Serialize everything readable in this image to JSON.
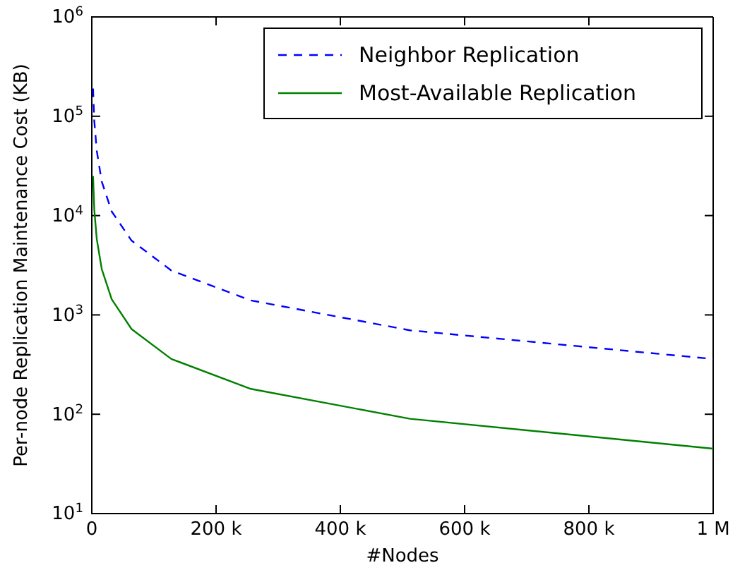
{
  "chart_data": {
    "type": "line",
    "xlabel": "#Nodes",
    "ylabel": "Per-node Replication Maintenance Cost (KB)",
    "log": "y",
    "xlim": [
      0,
      1000000
    ],
    "ylim": [
      10,
      1000000
    ],
    "xticks": [
      0,
      {
        "value": 200000,
        "label": "200 k"
      },
      {
        "value": 400000,
        "label": "400 k"
      },
      {
        "value": 600000,
        "label": "600 k"
      },
      {
        "value": 800000,
        "label": "800 k"
      },
      {
        "value": 1000000,
        "label": "1 M"
      }
    ],
    "yticks": [
      {
        "value": 10,
        "label": "10$^{1}$"
      },
      {
        "value": 100,
        "label": "10$^{2}$"
      },
      {
        "value": 1000,
        "label": "10$^{3}$"
      },
      {
        "value": 10000,
        "label": "10$^{4}$"
      },
      {
        "value": 100000,
        "label": "10$^{5}$"
      },
      {
        "value": 1000000,
        "label": "10$^{6}$"
      }
    ],
    "x": [
      2000,
      4000,
      8000,
      16000,
      32000,
      64000,
      128000,
      256000,
      512000,
      1000000
    ],
    "legend": "top right",
    "series": [
      {
        "name": "Neighbor Replication",
        "color": "#0000ff",
        "line_style": "dashed",
        "values": [
          190000,
          90000,
          45000,
          22000,
          11000,
          5600,
          2800,
          1400,
          700,
          360
        ]
      },
      {
        "name": "Most-Available Replication",
        "color": "#008000",
        "line_style": "solid",
        "values": [
          25000,
          11500,
          5800,
          2900,
          1440,
          720,
          360,
          180,
          90,
          45
        ]
      }
    ]
  }
}
